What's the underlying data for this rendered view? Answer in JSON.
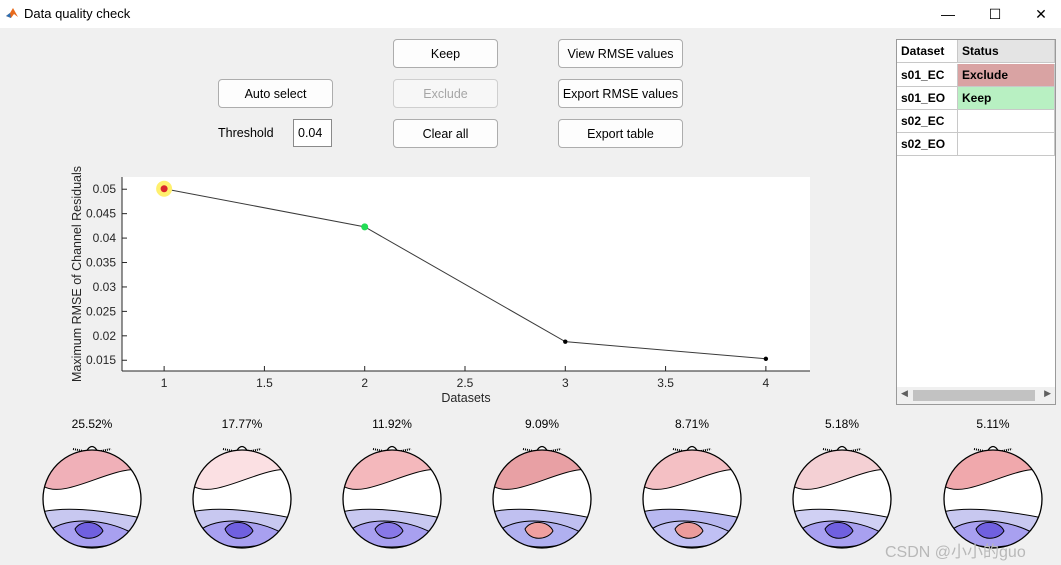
{
  "window": {
    "title": "Data quality check",
    "minimize_glyph": "—",
    "maximize_glyph": "☐",
    "close_glyph": "✕"
  },
  "controls": {
    "auto_select": "Auto select",
    "threshold_label": "Threshold",
    "threshold_value": "0.04",
    "keep": "Keep",
    "exclude": "Exclude",
    "clear_all": "Clear all",
    "view_rmse": "View RMSE values",
    "export_rmse": "Export RMSE values",
    "export_table": "Export table"
  },
  "chart_data": {
    "type": "line",
    "x": [
      1,
      2,
      3,
      4
    ],
    "y": [
      0.0501,
      0.0423,
      0.0188,
      0.0153
    ],
    "point_colors": [
      "#d9262b",
      "#22dd55",
      "#000000",
      "#000000"
    ],
    "highlight_index": 0,
    "highlight_color": "#fff06e",
    "xlabel": "Datasets",
    "ylabel": "Maximum RMSE of Channel Residuals",
    "xlim": [
      0.79,
      4.22
    ],
    "ylim": [
      0.0128,
      0.0525
    ],
    "xticks": [
      "1",
      "1.5",
      "2",
      "2.5",
      "3",
      "3.5",
      "4"
    ],
    "xtick_values": [
      1,
      1.5,
      2,
      2.5,
      3,
      3.5,
      4
    ],
    "yticks": [
      "0.015",
      "0.02",
      "0.025",
      "0.03",
      "0.035",
      "0.04",
      "0.045",
      "0.05"
    ],
    "ytick_values": [
      0.015,
      0.02,
      0.025,
      0.03,
      0.035,
      0.04,
      0.045,
      0.05
    ]
  },
  "table": {
    "headers": [
      "Dataset",
      "Status"
    ],
    "rows": [
      {
        "dataset": "s01_EC",
        "status": "Exclude",
        "color": "#d9a3a3"
      },
      {
        "dataset": "s01_EO",
        "status": "Keep",
        "color": "#b8f0c2"
      },
      {
        "dataset": "s02_EC",
        "status": "",
        "color": "#ffffff"
      },
      {
        "dataset": "s02_EO",
        "status": "",
        "color": "#ffffff"
      }
    ],
    "scroll_left": "◀",
    "scroll_right": "▶"
  },
  "topomaps": [
    {
      "label": "25.52%",
      "colors": {
        "tr": "#f0b0b8",
        "low1": "#c8c8f0",
        "low2": "#a8a0f0",
        "core": "#7060e0"
      }
    },
    {
      "label": "17.77%",
      "colors": {
        "tr": "#fbe0e3",
        "low1": "#c8c8f0",
        "low2": "#a8a0f0",
        "core": "#7060e0"
      }
    },
    {
      "label": "11.92%",
      "colors": {
        "tr": "#f4b8bc",
        "low1": "#c8c8f0",
        "low2": "#a8a0f0",
        "core": "#8878e8"
      }
    },
    {
      "label": "9.09%",
      "colors": {
        "tr": "#e8a0a4",
        "low1": "#c0c0f0",
        "low2": "#b0b0f0",
        "core": "#f0a0a0"
      }
    },
    {
      "label": "8.71%",
      "colors": {
        "tr": "#f4c0c4",
        "low1": "#b8b8f0",
        "low2": "#c0c0f4",
        "core": "#ec9c9c"
      }
    },
    {
      "label": "5.18%",
      "colors": {
        "tr": "#f4d0d4",
        "low1": "#d0d0f4",
        "low2": "#a8a0f0",
        "core": "#7060e0"
      }
    },
    {
      "label": "5.11%",
      "colors": {
        "tr": "#f0a8ac",
        "low1": "#c8c8f0",
        "low2": "#a8a0f0",
        "core": "#7060e0"
      }
    }
  ],
  "watermark": "CSDN @小小的guo"
}
